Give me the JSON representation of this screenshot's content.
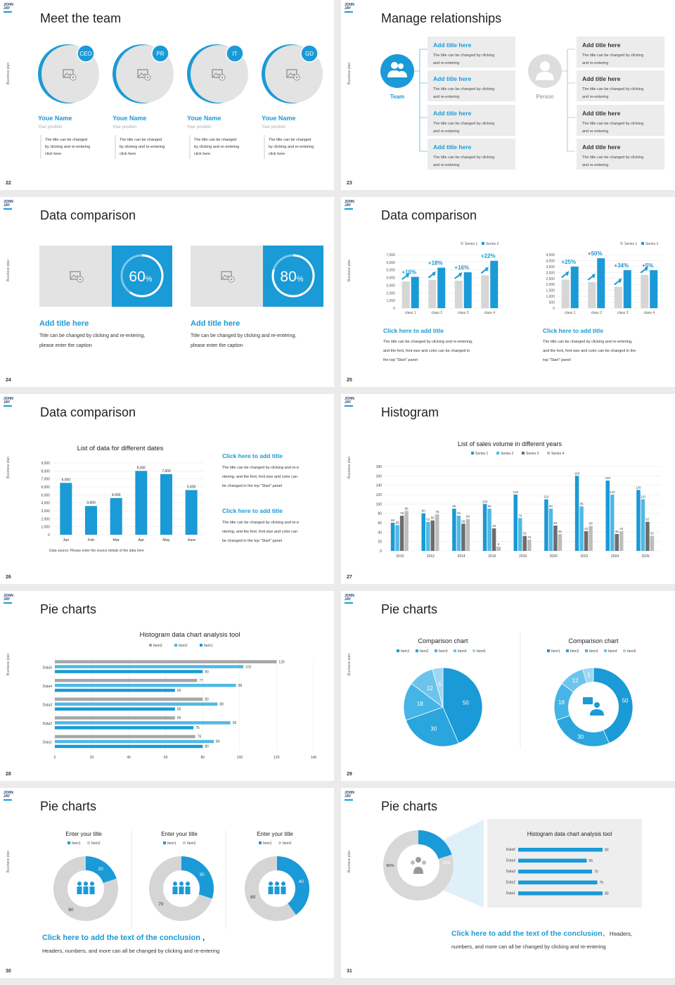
{
  "logo": [
    "JOHN",
    "JAY"
  ],
  "side_label": "Business plan",
  "s22": {
    "page": "22",
    "title": "Meet the team",
    "members": [
      {
        "badge": "CEO",
        "name": "Youe Name",
        "pos": "Your position",
        "desc": [
          "The title can be changed",
          "by clicking and re-entering",
          "click here"
        ]
      },
      {
        "badge": "PR",
        "name": "Youe Name",
        "pos": "Your position",
        "desc": [
          "The title can be changed",
          "by clicking and re-entering",
          "click here"
        ]
      },
      {
        "badge": "IT",
        "name": "Youe Name",
        "pos": "Your position",
        "desc": [
          "The title can be changed",
          "by clicking and re-entering",
          "click here"
        ]
      },
      {
        "badge": "GD",
        "name": "Youe Name",
        "pos": "Your position",
        "desc": [
          "The title can be changed",
          "by clicking and re-entering",
          "click here"
        ]
      }
    ]
  },
  "s23": {
    "page": "23",
    "title": "Manage relationships",
    "team_label": "Team",
    "person_label": "Person",
    "box_title": "Add title here",
    "box_text": [
      "The title can be changed by clicking",
      "and re-entering"
    ]
  },
  "s24": {
    "page": "24",
    "title": "Data comparison",
    "cards": [
      {
        "pct": 60,
        "value": "60",
        "sym": "%",
        "heading": "Add title here",
        "text": [
          "Title can be changed by clicking and re-entering,",
          "please enter the caption"
        ]
      },
      {
        "pct": 80,
        "value": "80",
        "sym": "%",
        "heading": "Add title here",
        "text": [
          "Title can be changed by clicking and re-entering,",
          "please enter the caption"
        ]
      }
    ]
  },
  "s25": {
    "page": "25",
    "title": "Data comparison",
    "legend": [
      "Series 1",
      "Series 2"
    ],
    "charts": [
      {
        "type": "bar",
        "categories": [
          "class 1",
          "class 2",
          "class 3",
          "class 4"
        ],
        "ylim": [
          0,
          7000
        ],
        "yticks": [
          "0",
          "1,000",
          "2,000",
          "3,000",
          "4,000",
          "5,000",
          "6,000",
          "7,000"
        ],
        "series": [
          {
            "name": "Series 1",
            "values": [
              3500,
              3700,
              3600,
              4300
            ]
          },
          {
            "name": "Series 2",
            "values": [
              4100,
              5300,
              4700,
              6200
            ]
          }
        ],
        "changes": [
          "+10%",
          "+18%",
          "+16%",
          "+22%"
        ],
        "heading": "Click here to add title",
        "text": [
          "The title can be changed by clicking and re-entering,",
          "and the font, font size and color can be changed in",
          "the top \"Start\" panel"
        ]
      },
      {
        "type": "bar",
        "categories": [
          "class 1",
          "class 2",
          "class 3",
          "class 4"
        ],
        "ylim": [
          0,
          4500
        ],
        "yticks": [
          "0",
          "500",
          "1,000",
          "1,500",
          "2,000",
          "2,500",
          "3,000",
          "3,500",
          "4,000",
          "4,500"
        ],
        "series": [
          {
            "name": "Series 1",
            "values": [
              2400,
              2200,
              1800,
              2800
            ]
          },
          {
            "name": "Series 2",
            "values": [
              3500,
              4200,
              3200,
              3200
            ]
          }
        ],
        "changes": [
          "+25%",
          "+50%",
          "+34%",
          "+5%"
        ],
        "heading": "Click here to add title",
        "text": [
          "The title can be changed by clicking and re-entering,",
          "and the font, font size and color can be changed in the",
          "top \"Start\" panel"
        ]
      }
    ]
  },
  "s26": {
    "page": "26",
    "title": "Data comparison",
    "chart_title": "List of data for different dates",
    "source": "Data source: Please enter the source details of the data here",
    "blocks": [
      {
        "heading": "Click here to add title",
        "text": [
          "The title can be changed by clicking and re-e",
          "ntering, and the font, font size and color can",
          "be changed in the top \"Start\" panel"
        ]
      },
      {
        "heading": "Click here to add title",
        "text": [
          "The title can be changed by clicking and re-e",
          "ntering, and the font, font size and color can",
          "be changed in the top \"Start\" panel"
        ]
      }
    ]
  },
  "s27": {
    "page": "27",
    "title": "Histogram",
    "chart_title": "List of sales volume in different years",
    "legend": [
      "Series 1",
      "Series 2",
      "Series 3",
      "Series 4"
    ]
  },
  "s28": {
    "page": "28",
    "title": "Pie charts",
    "chart_title": "Histogram data chart analysis tool",
    "legend": [
      "Item3",
      "Item2",
      "Item1"
    ]
  },
  "s29": {
    "page": "29",
    "title": "Pie charts",
    "charts": [
      {
        "title": "Comparison chart"
      },
      {
        "title": "Comparison chart"
      }
    ],
    "legend": [
      "Item1",
      "Item2",
      "Item3",
      "Item4",
      "Item5"
    ]
  },
  "s30": {
    "page": "30",
    "title": "Pie charts",
    "donuts": [
      {
        "title": "Enter your title",
        "legend": [
          "Item1",
          "Item2"
        ],
        "a": 20,
        "b": 80
      },
      {
        "title": "Enter your title",
        "legend": [
          "Item1",
          "Item2"
        ],
        "a": 30,
        "b": 70
      },
      {
        "title": "Enter your title",
        "legend": [
          "Item1",
          "Item2"
        ],
        "a": 40,
        "b": 60
      }
    ],
    "conclusion": "Click here to add the text of the conclusion",
    "conclusion_tail": ",",
    "conclusion_line2": "Headers, numbers, and more can all be changed by clicking and re-entering"
  },
  "s31": {
    "page": "31",
    "title": "Pie charts",
    "donut": {
      "a_label": "20%",
      "b_label": "80%",
      "a": 20,
      "b": 80
    },
    "panel_title": "Histogram data chart analysis tool",
    "conclusion": "Click here to add the text of the conclusion",
    "conclusion_tail": "， Headers,",
    "conclusion_line2": "numbers, and more can all be changed by clicking and re-entering"
  },
  "chart_data": [
    {
      "type": "bar",
      "title": "List of data for different dates",
      "categories": [
        "Jan",
        "Feb",
        "Mar",
        "Apr",
        "May",
        "June"
      ],
      "values": [
        6500,
        3600,
        4600,
        8000,
        7600,
        5600
      ],
      "value_labels": [
        "6,500",
        "3,600",
        "4,600",
        "8,000",
        "7,600",
        "5,600"
      ],
      "ylim": [
        0,
        9000
      ],
      "yticks": [
        "0",
        "1,000",
        "2,000",
        "3,000",
        "4,000",
        "5,000",
        "6,000",
        "7,000",
        "8,000",
        "9,000"
      ]
    },
    {
      "type": "bar",
      "title": "List of sales volume in different years",
      "categories": [
        "2010",
        "2012",
        "2014",
        "2016",
        "2018",
        "2020",
        "2022",
        "2024",
        "2026"
      ],
      "ylim": [
        0,
        180
      ],
      "yticks": [
        "0",
        "20",
        "40",
        "60",
        "80",
        "100",
        "120",
        "140",
        "160",
        "180"
      ],
      "series": [
        {
          "name": "Series 1",
          "values": [
            60,
            80,
            90,
            100,
            120,
            110,
            160,
            150,
            130
          ]
        },
        {
          "name": "Series 2",
          "values": [
            55,
            62,
            75,
            90,
            70,
            90,
            95,
            120,
            110
          ]
        },
        {
          "name": "Series 3",
          "values": [
            75,
            65,
            58,
            48,
            32,
            54,
            42,
            36,
            62
          ]
        },
        {
          "name": "Series 4",
          "values": [
            85,
            78,
            68,
            9,
            24,
            36,
            53,
            42,
            32
          ]
        }
      ]
    },
    {
      "type": "bar",
      "orientation": "horizontal",
      "title": "Histogram data chart analysis tool",
      "categories": [
        "Data1",
        "Data2",
        "Data3",
        "Data4",
        "Data5"
      ],
      "xlim": [
        0,
        140
      ],
      "xticks": [
        "0",
        "20",
        "40",
        "60",
        "80",
        "100",
        "120",
        "140"
      ],
      "series": [
        {
          "name": "Item3",
          "values": [
            76,
            65,
            80,
            77,
            120
          ]
        },
        {
          "name": "Item2",
          "values": [
            86,
            95,
            88,
            98,
            102
          ]
        },
        {
          "name": "Item1",
          "values": [
            80,
            75,
            65,
            65,
            80
          ]
        }
      ]
    },
    {
      "type": "pie",
      "title": "Comparison chart",
      "categories": [
        "Item1",
        "Item2",
        "Item3",
        "Item4",
        "Item5"
      ],
      "values": [
        50,
        30,
        18,
        12,
        5
      ]
    },
    {
      "type": "pie",
      "title": "Comparison chart",
      "donut": true,
      "categories": [
        "Item1",
        "Item2",
        "Item3",
        "Item4",
        "Item5"
      ],
      "values": [
        50,
        30,
        18,
        12,
        5
      ]
    },
    {
      "type": "bar",
      "orientation": "horizontal",
      "title": "Histogram data chart analysis tool",
      "categories": [
        "Data5",
        "Data4",
        "Data3",
        "Data2",
        "Data1"
      ],
      "values": [
        80,
        65,
        70,
        75,
        80
      ]
    }
  ]
}
